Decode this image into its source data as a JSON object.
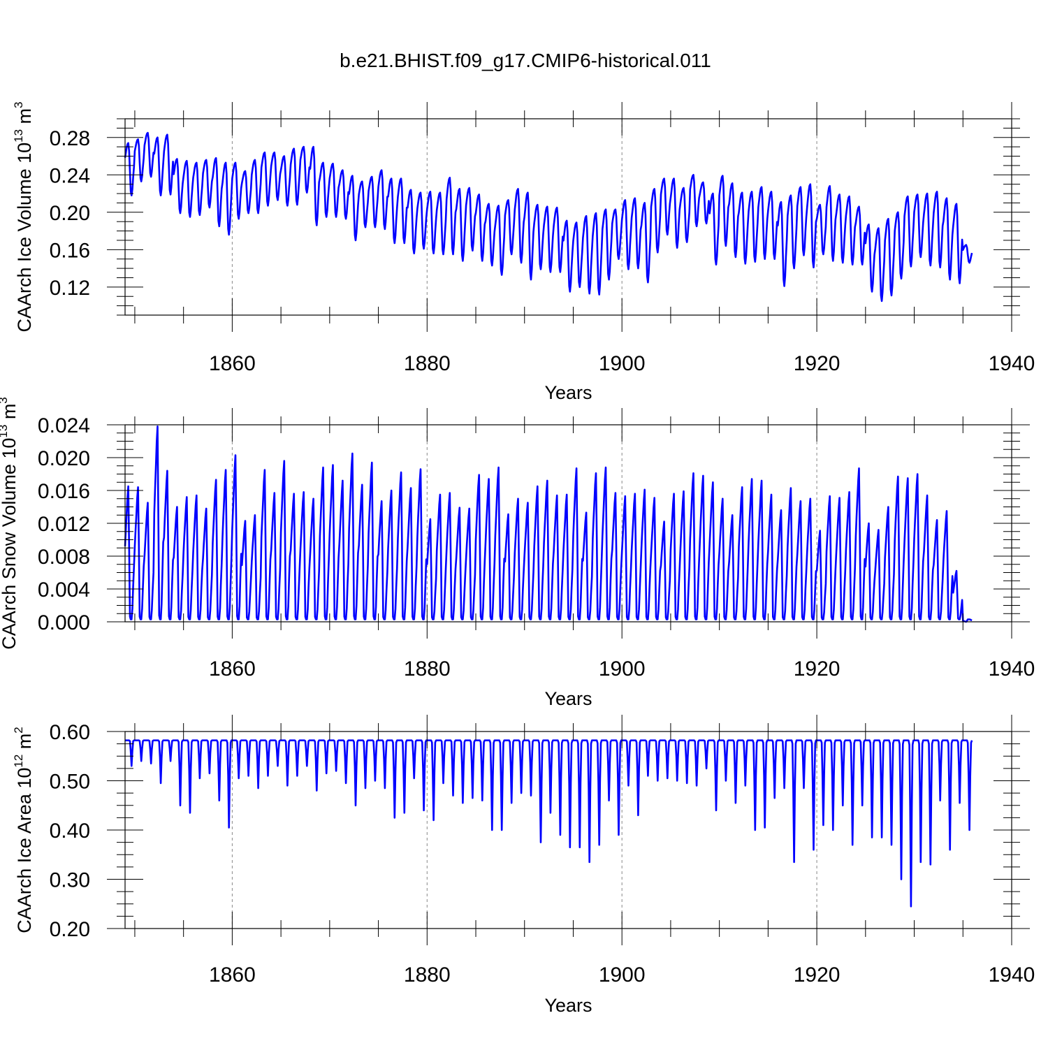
{
  "title": "b.e21.BHIST.f09_g17.CMIP6-historical.011",
  "colors": {
    "series": "#0000ff",
    "grid": "#888888",
    "axis": "#000000"
  },
  "chart_data": [
    {
      "type": "line",
      "name": "ice-volume",
      "ylabel": {
        "base": "CAArch Ice Volume 10",
        "exp": "13",
        "unit": " m",
        "unit_exp": "3"
      },
      "xlabel": "Years",
      "xlim": [
        1849,
        1940
      ],
      "ylim": [
        0.09,
        0.3
      ],
      "xticks": [
        1860,
        1880,
        1900,
        1920,
        1940
      ],
      "yticks": [
        0.12,
        0.16,
        0.2,
        0.24,
        0.28
      ],
      "ytick_labels": [
        "0.12",
        "0.16",
        "0.20",
        "0.24",
        "0.28"
      ],
      "grid_x": true,
      "x_start": 1849,
      "annual_max": [
        0.274,
        0.278,
        0.285,
        0.28,
        0.283,
        0.257,
        0.255,
        0.253,
        0.256,
        0.258,
        0.253,
        0.253,
        0.244,
        0.256,
        0.264,
        0.264,
        0.26,
        0.268,
        0.27,
        0.27,
        0.253,
        0.252,
        0.245,
        0.239,
        0.233,
        0.238,
        0.245,
        0.236,
        0.236,
        0.224,
        0.221,
        0.222,
        0.221,
        0.237,
        0.225,
        0.226,
        0.219,
        0.209,
        0.207,
        0.213,
        0.225,
        0.221,
        0.208,
        0.206,
        0.205,
        0.191,
        0.189,
        0.196,
        0.199,
        0.203,
        0.203,
        0.213,
        0.215,
        0.21,
        0.225,
        0.236,
        0.236,
        0.226,
        0.24,
        0.232,
        0.22,
        0.239,
        0.231,
        0.221,
        0.222,
        0.227,
        0.222,
        0.211,
        0.218,
        0.227,
        0.23,
        0.208,
        0.228,
        0.219,
        0.217,
        0.206,
        0.187,
        0.183,
        0.193,
        0.2,
        0.217,
        0.219,
        0.22,
        0.222,
        0.215,
        0.209,
        0.165
      ],
      "annual_min": [
        0.218,
        0.233,
        0.238,
        0.218,
        0.219,
        0.199,
        0.195,
        0.197,
        0.205,
        0.185,
        0.176,
        0.193,
        0.199,
        0.199,
        0.207,
        0.213,
        0.207,
        0.208,
        0.221,
        0.186,
        0.195,
        0.195,
        0.193,
        0.17,
        0.184,
        0.184,
        0.182,
        0.167,
        0.167,
        0.156,
        0.161,
        0.156,
        0.155,
        0.155,
        0.148,
        0.159,
        0.148,
        0.143,
        0.133,
        0.155,
        0.146,
        0.128,
        0.139,
        0.136,
        0.136,
        0.115,
        0.12,
        0.113,
        0.112,
        0.128,
        0.15,
        0.139,
        0.14,
        0.125,
        0.157,
        0.176,
        0.162,
        0.168,
        0.185,
        0.188,
        0.144,
        0.164,
        0.152,
        0.145,
        0.147,
        0.15,
        0.15,
        0.121,
        0.14,
        0.154,
        0.141,
        0.155,
        0.148,
        0.146,
        0.144,
        0.144,
        0.115,
        0.105,
        0.111,
        0.129,
        0.142,
        0.152,
        0.143,
        0.141,
        0.128,
        0.124,
        0.146
      ]
    },
    {
      "type": "line",
      "name": "snow-volume",
      "ylabel": {
        "base": "CAArch Snow Volume 10",
        "exp": "13",
        "unit": " m",
        "unit_exp": "3"
      },
      "xlabel": "Years",
      "xlim": [
        1849,
        1940
      ],
      "ylim": [
        0.0,
        0.024
      ],
      "xticks": [
        1860,
        1880,
        1900,
        1920,
        1940
      ],
      "yticks": [
        0.0,
        0.004,
        0.008,
        0.012,
        0.016,
        0.02,
        0.024
      ],
      "ytick_labels": [
        "0.000",
        "0.004",
        "0.008",
        "0.012",
        "0.016",
        "0.020",
        "0.024"
      ],
      "grid_x": true,
      "x_start": 1849,
      "annual_max": [
        0.0165,
        0.0164,
        0.0145,
        0.0238,
        0.0184,
        0.014,
        0.0152,
        0.0154,
        0.0138,
        0.0173,
        0.0185,
        0.0203,
        0.0123,
        0.013,
        0.0185,
        0.0157,
        0.0196,
        0.0156,
        0.0158,
        0.015,
        0.0188,
        0.0191,
        0.0172,
        0.0205,
        0.0167,
        0.0194,
        0.0147,
        0.016,
        0.0182,
        0.0163,
        0.0186,
        0.0125,
        0.0155,
        0.0157,
        0.0139,
        0.0138,
        0.0179,
        0.0174,
        0.0188,
        0.0131,
        0.015,
        0.0145,
        0.0165,
        0.0172,
        0.0154,
        0.0155,
        0.0187,
        0.0133,
        0.0181,
        0.0188,
        0.0157,
        0.0153,
        0.0156,
        0.0161,
        0.0151,
        0.0122,
        0.0156,
        0.0159,
        0.0181,
        0.0178,
        0.017,
        0.015,
        0.013,
        0.0164,
        0.0174,
        0.0172,
        0.0155,
        0.0136,
        0.0163,
        0.0147,
        0.015,
        0.0111,
        0.0153,
        0.0151,
        0.0158,
        0.0187,
        0.012,
        0.0112,
        0.014,
        0.0177,
        0.0175,
        0.018,
        0.0154,
        0.0124,
        0.0135,
        0.0062,
        0.0
      ],
      "annual_min": [
        0.0003,
        0.0003,
        0.0003,
        0.0003,
        0.0003,
        0.0003,
        0.0003,
        0.0003,
        0.0003,
        0.0003,
        0.0003,
        0.0003,
        0.0003,
        0.0003,
        0.0003,
        0.0003,
        0.0003,
        0.0003,
        0.0003,
        0.0003,
        0.0003,
        0.0003,
        0.0003,
        0.0003,
        0.0003,
        0.0003,
        0.0003,
        0.0003,
        0.0003,
        0.0003,
        0.0003,
        0.0003,
        0.0003,
        0.0003,
        0.0003,
        0.0003,
        0.0003,
        0.0003,
        0.0003,
        0.0003,
        0.0003,
        0.0003,
        0.0003,
        0.0003,
        0.0003,
        0.0003,
        0.0003,
        0.0003,
        0.0003,
        0.0003,
        0.0003,
        0.0003,
        0.0003,
        0.0003,
        0.0003,
        0.0003,
        0.0003,
        0.0003,
        0.0003,
        0.0003,
        0.0003,
        0.0003,
        0.0003,
        0.0003,
        0.0003,
        0.0003,
        0.0003,
        0.0003,
        0.0003,
        0.0003,
        0.0003,
        0.0003,
        0.0003,
        0.0003,
        0.0003,
        0.0003,
        0.0003,
        0.0003,
        0.0003,
        0.0003,
        0.0003,
        0.0003,
        0.0003,
        0.0003,
        0.0003,
        0.0003,
        0.0003
      ]
    },
    {
      "type": "line",
      "name": "ice-area",
      "ylabel": {
        "base": "CAArch Ice Area 10",
        "exp": "12",
        "unit": " m",
        "unit_exp": "2"
      },
      "xlabel": "Years",
      "xlim": [
        1849,
        1940
      ],
      "ylim": [
        0.2,
        0.6
      ],
      "xticks": [
        1860,
        1880,
        1900,
        1920,
        1940
      ],
      "yticks": [
        0.2,
        0.3,
        0.4,
        0.5,
        0.6
      ],
      "ytick_labels": [
        "0.20",
        "0.30",
        "0.40",
        "0.50",
        "0.60"
      ],
      "grid_x": true,
      "x_start": 1849,
      "annual_max": [
        0.582,
        0.582,
        0.582,
        0.582,
        0.582,
        0.582,
        0.582,
        0.582,
        0.582,
        0.582,
        0.582,
        0.582,
        0.582,
        0.582,
        0.582,
        0.582,
        0.582,
        0.582,
        0.582,
        0.582,
        0.582,
        0.582,
        0.582,
        0.582,
        0.582,
        0.582,
        0.582,
        0.582,
        0.582,
        0.582,
        0.582,
        0.582,
        0.582,
        0.582,
        0.582,
        0.582,
        0.582,
        0.582,
        0.582,
        0.582,
        0.582,
        0.582,
        0.582,
        0.582,
        0.582,
        0.582,
        0.582,
        0.582,
        0.582,
        0.582,
        0.582,
        0.582,
        0.582,
        0.582,
        0.582,
        0.582,
        0.582,
        0.582,
        0.582,
        0.582,
        0.582,
        0.582,
        0.582,
        0.582,
        0.582,
        0.582,
        0.582,
        0.582,
        0.582,
        0.582,
        0.582,
        0.582,
        0.582,
        0.582,
        0.582,
        0.582,
        0.582,
        0.582,
        0.582,
        0.582,
        0.582,
        0.582,
        0.582,
        0.582,
        0.582,
        0.582,
        0.582
      ],
      "annual_min": [
        0.53,
        0.54,
        0.535,
        0.495,
        0.54,
        0.45,
        0.435,
        0.505,
        0.515,
        0.46,
        0.405,
        0.505,
        0.51,
        0.485,
        0.51,
        0.53,
        0.49,
        0.51,
        0.53,
        0.48,
        0.515,
        0.52,
        0.495,
        0.45,
        0.485,
        0.5,
        0.485,
        0.425,
        0.435,
        0.505,
        0.44,
        0.42,
        0.495,
        0.47,
        0.455,
        0.465,
        0.46,
        0.4,
        0.4,
        0.455,
        0.475,
        0.47,
        0.375,
        0.435,
        0.39,
        0.365,
        0.365,
        0.335,
        0.37,
        0.46,
        0.39,
        0.49,
        0.43,
        0.51,
        0.5,
        0.505,
        0.5,
        0.495,
        0.49,
        0.525,
        0.44,
        0.5,
        0.455,
        0.49,
        0.4,
        0.405,
        0.465,
        0.485,
        0.335,
        0.485,
        0.36,
        0.41,
        0.4,
        0.45,
        0.37,
        0.45,
        0.385,
        0.385,
        0.37,
        0.3,
        0.245,
        0.335,
        0.33,
        0.46,
        0.36,
        0.455,
        0.4
      ]
    }
  ]
}
